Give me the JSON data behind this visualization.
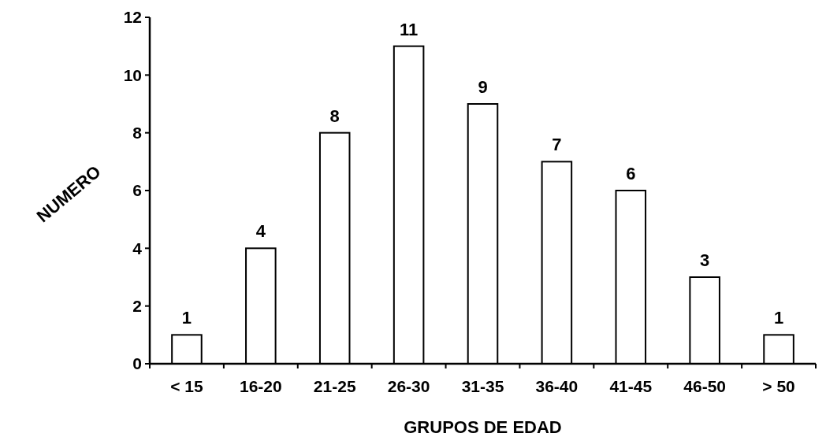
{
  "chart_data": {
    "type": "bar",
    "xlabel": "GRUPOS DE EDAD",
    "ylabel": "NUMERO",
    "categories": [
      "< 15",
      "16-20",
      "21-25",
      "26-30",
      "31-35",
      "36-40",
      "41-45",
      "46-50",
      "> 50"
    ],
    "values": [
      1,
      4,
      8,
      11,
      9,
      7,
      6,
      3,
      1
    ],
    "color": "#ffffff",
    "ylim": [
      0,
      12
    ],
    "yticks": [
      0,
      2,
      4,
      6,
      8,
      10,
      12
    ],
    "grid": false,
    "data_labels": true
  }
}
